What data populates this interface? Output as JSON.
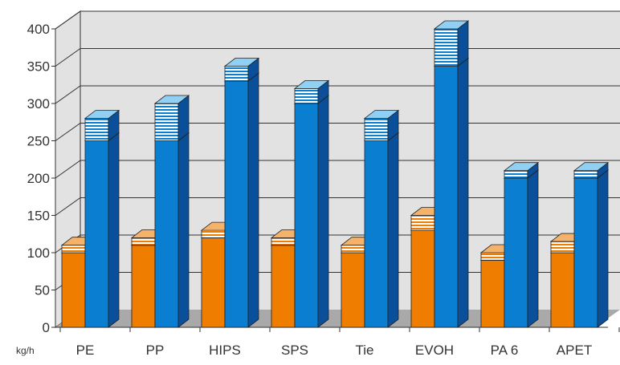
{
  "chart_data": {
    "type": "bar",
    "unit_label": "kg/h",
    "categories": [
      "PE",
      "PP",
      "HIPS",
      "SPS",
      "Tie",
      "EVOH",
      "PA 6",
      "APET"
    ],
    "y_ticks": [
      "0",
      "50",
      "100",
      "150",
      "200",
      "250",
      "300",
      "350",
      "400"
    ],
    "ylim": [
      0,
      400
    ],
    "grid": true,
    "series": [
      {
        "values": [
          100,
          110,
          120,
          110,
          100,
          130,
          90,
          100
        ],
        "color": "#ee7d00"
      },
      {
        "values": [
          110,
          120,
          130,
          120,
          110,
          150,
          100,
          115
        ],
        "color": "#f5b26b",
        "pattern": "striped"
      },
      {
        "values": [
          250,
          250,
          330,
          300,
          250,
          350,
          200,
          200
        ],
        "color": "#0a7fd1"
      },
      {
        "values": [
          280,
          300,
          350,
          320,
          280,
          400,
          210,
          210
        ],
        "color": "#8fd0f4",
        "pattern": "striped"
      }
    ],
    "colors": {
      "wall": "#e2e2e2",
      "floor": "#a9a9a9",
      "gridline": "#333333",
      "orange_side": "#b85e00",
      "blue_side": "#0a4f99"
    }
  }
}
